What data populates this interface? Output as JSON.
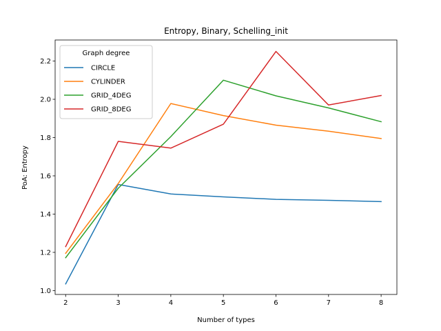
{
  "chart_data": {
    "type": "line",
    "title": "Entropy, Binary, Schelling_init",
    "xlabel": "Number of types",
    "ylabel": "PoA: Entropy",
    "x": [
      2,
      3,
      4,
      5,
      6,
      7,
      8
    ],
    "xlim": [
      1.8,
      8.3
    ],
    "ylim": [
      0.98,
      2.31
    ],
    "xticks": [
      2,
      3,
      4,
      5,
      6,
      7,
      8
    ],
    "yticks": [
      1.0,
      1.2,
      1.4,
      1.6,
      1.8,
      2.0,
      2.2
    ],
    "grid": false,
    "legend": {
      "title": "Graph degree",
      "placement": "top-left"
    },
    "series": [
      {
        "name": "CIRCLE",
        "color": "#1f77b4",
        "values": [
          1.035,
          1.555,
          1.505,
          1.49,
          1.477,
          1.472,
          1.465
        ]
      },
      {
        "name": "CYLINDER",
        "color": "#ff7f0e",
        "values": [
          1.195,
          1.56,
          1.978,
          1.915,
          1.865,
          1.833,
          1.795
        ]
      },
      {
        "name": "GRID_4DEG",
        "color": "#2ca02c",
        "values": [
          1.172,
          1.535,
          1.805,
          2.1,
          2.018,
          1.955,
          1.883
        ]
      },
      {
        "name": "GRID_8DEG",
        "color": "#d62728",
        "values": [
          1.23,
          1.78,
          1.745,
          1.87,
          2.25,
          1.97,
          2.02
        ]
      }
    ]
  }
}
